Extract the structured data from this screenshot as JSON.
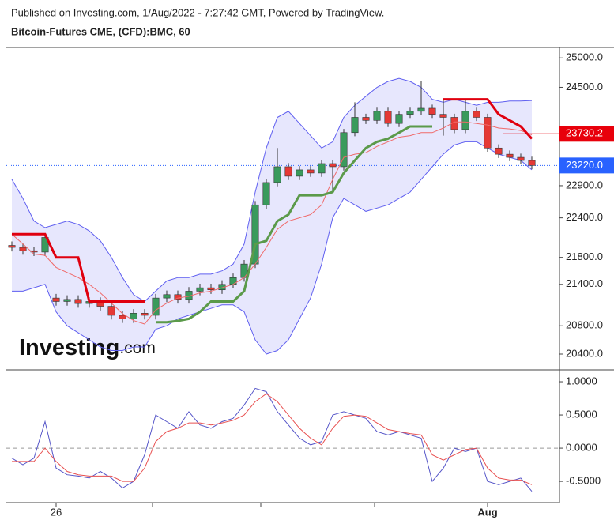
{
  "source": "Published on Investing.com, 1/Aug/2022 - 7:27:42 GMT, Powered by TradingView.",
  "watermark": {
    "brand": "Investing",
    "suffix": ".com"
  },
  "chart_data": [
    {
      "type": "candlestick",
      "title": "Bitcoin-Futures CME, (CFD):BMC, 60",
      "log_scale": true,
      "categories": [
        null,
        null,
        null,
        null,
        "26",
        null,
        null,
        null,
        null,
        null,
        null,
        null,
        null,
        null,
        null,
        null,
        null,
        null,
        null,
        null,
        null,
        null,
        null,
        null,
        null,
        null,
        null,
        null,
        null,
        null,
        null,
        null,
        null,
        null,
        null,
        null,
        null,
        null,
        null,
        null,
        null,
        null,
        null,
        "Aug",
        null,
        null,
        null,
        null
      ],
      "open": [
        21980,
        21950,
        21900,
        21880,
        21200,
        21150,
        21180,
        21120,
        21150,
        21080,
        20950,
        20900,
        20980,
        20950,
        21200,
        21250,
        21180,
        21300,
        21350,
        21320,
        21400,
        21500,
        21700,
        22600,
        22950,
        23200,
        23050,
        23150,
        23100,
        23250,
        23200,
        23750,
        24000,
        23950,
        24100,
        23900,
        24050,
        24100,
        24150,
        24050,
        24000,
        23800,
        24100,
        24000,
        23500,
        23400,
        23350,
        23300
      ],
      "high": [
        22040,
        22010,
        21960,
        22160,
        21260,
        21240,
        21240,
        21210,
        21210,
        21140,
        21010,
        21040,
        21040,
        21260,
        21310,
        21310,
        21360,
        21410,
        21410,
        21460,
        21560,
        21760,
        22660,
        23010,
        23500,
        23260,
        23210,
        23210,
        23310,
        23310,
        23810,
        24250,
        24060,
        24160,
        24160,
        24110,
        24160,
        24600,
        24210,
        24300,
        24060,
        24300,
        24160,
        24060,
        23560,
        23460,
        23410,
        23360
      ],
      "low": [
        21890,
        21840,
        21820,
        21820,
        21090,
        21090,
        21060,
        21060,
        21020,
        20890,
        20840,
        20840,
        20890,
        20890,
        21140,
        21120,
        21120,
        21240,
        21260,
        21260,
        21340,
        21440,
        21640,
        22540,
        22890,
        22990,
        22990,
        23040,
        23040,
        22800,
        23140,
        23690,
        23890,
        23890,
        23840,
        23840,
        23990,
        24040,
        23990,
        23700,
        23740,
        23740,
        23940,
        23440,
        23340,
        23290,
        23240,
        23160
      ],
      "close": [
        21950,
        21900,
        21880,
        22100,
        21150,
        21180,
        21120,
        21150,
        21080,
        20950,
        20900,
        20980,
        20950,
        21200,
        21250,
        21180,
        21300,
        21350,
        21320,
        21400,
        21500,
        21700,
        22600,
        22950,
        23200,
        23050,
        23150,
        23100,
        23250,
        23200,
        23750,
        24000,
        23950,
        24100,
        23900,
        24050,
        24100,
        24150,
        24050,
        24000,
        23800,
        24100,
        24000,
        23500,
        23400,
        23350,
        23300,
        23220
      ],
      "up_color": "#3a9a5c",
      "down_color": "#e53935",
      "bands": {
        "color": "#5f5ff0",
        "upper": [
          23000,
          22700,
          22350,
          22250,
          22300,
          22350,
          22300,
          22200,
          22050,
          21800,
          21500,
          21250,
          21150,
          21300,
          21450,
          21500,
          21500,
          21550,
          21550,
          21600,
          21700,
          22000,
          22800,
          23500,
          24000,
          24100,
          23900,
          23700,
          23500,
          23600,
          24000,
          24200,
          24350,
          24500,
          24600,
          24650,
          24600,
          24500,
          24300,
          24250,
          24300,
          24250,
          24200,
          24250,
          24250,
          24270,
          24270,
          24280
        ],
        "lower": [
          21300,
          21300,
          21350,
          21400,
          21000,
          20800,
          20700,
          20600,
          20500,
          20450,
          20450,
          20500,
          20500,
          20750,
          20800,
          20900,
          20950,
          21000,
          21050,
          21100,
          21100,
          21000,
          20600,
          20400,
          20450,
          20600,
          20900,
          21200,
          21700,
          22400,
          22700,
          22600,
          22500,
          22550,
          22600,
          22700,
          22800,
          23000,
          23200,
          23400,
          23550,
          23600,
          23600,
          23500,
          23400,
          23350,
          23300,
          23150
        ]
      },
      "series": [
        {
          "color": "#f06a6a",
          "width": 1,
          "values": [
            22150,
            22000,
            21850,
            21830,
            21650,
            21575,
            21500,
            21400,
            21275,
            21125,
            20975,
            20875,
            20825,
            21025,
            21125,
            21200,
            21225,
            21275,
            21300,
            21350,
            21400,
            21500,
            21700,
            21950,
            22225,
            22350,
            22400,
            22450,
            22600,
            23000,
            23350,
            23400,
            23425,
            23525,
            23600,
            23675,
            23700,
            23750,
            23750,
            23825,
            23925,
            23925,
            23900,
            23875,
            23825,
            23810,
            23785,
            23715
          ]
        },
        {
          "color": "#e0000f",
          "width": 3,
          "values": [
            22150,
            22150,
            22150,
            22150,
            21800,
            21800,
            21800,
            21150,
            21150,
            21150,
            21150,
            21150,
            21150,
            null,
            null,
            null,
            null,
            null,
            null,
            null,
            null,
            null,
            null,
            null,
            null,
            null,
            null,
            null,
            null,
            null,
            null,
            null,
            null,
            null,
            null,
            null,
            null,
            null,
            null,
            24300,
            24300,
            24300,
            24300,
            24300,
            24050,
            23950,
            23850,
            23650
          ]
        },
        {
          "color": "#5b9a4a",
          "width": 3,
          "values": [
            null,
            null,
            null,
            null,
            null,
            null,
            null,
            null,
            null,
            null,
            null,
            null,
            null,
            20850,
            20850,
            20870,
            20900,
            21000,
            21150,
            21150,
            21150,
            21300,
            22000,
            22050,
            22350,
            22450,
            22750,
            22750,
            22750,
            22800,
            23100,
            23300,
            23500,
            23600,
            23650,
            23750,
            23850,
            23850,
            23850,
            null,
            null,
            null,
            null,
            null,
            null,
            null,
            null,
            null
          ]
        }
      ],
      "price_lines": [
        {
          "value": 23730.2,
          "label": "23730.2",
          "color": "#e8000b",
          "style": "solid"
        },
        {
          "value": 23220,
          "label": "23220.0",
          "color": "#2962ff",
          "style": "dotted"
        }
      ],
      "ylim": [
        20180,
        25180
      ],
      "yticks": [
        {
          "value": 25000,
          "label": "25000.0"
        },
        {
          "value": 24500,
          "label": "24500.0"
        },
        {
          "value": 22900,
          "label": "22900.0"
        },
        {
          "value": 22400,
          "label": "22400.0"
        },
        {
          "value": 21800,
          "label": "21800.0"
        },
        {
          "value": 21400,
          "label": "21400.0"
        },
        {
          "value": 20800,
          "label": "20800.0"
        },
        {
          "value": 20400,
          "label": "20400.0"
        }
      ]
    },
    {
      "type": "line",
      "series": [
        {
          "color": "#5555c8",
          "values": [
            -0.15,
            -0.25,
            -0.15,
            0.4,
            -0.3,
            -0.4,
            -0.42,
            -0.45,
            -0.35,
            -0.45,
            -0.6,
            -0.5,
            -0.1,
            0.5,
            0.4,
            0.3,
            0.55,
            0.35,
            0.3,
            0.4,
            0.45,
            0.65,
            0.9,
            0.85,
            0.55,
            0.35,
            0.15,
            0.05,
            0.1,
            0.5,
            0.55,
            0.5,
            0.45,
            0.25,
            0.2,
            0.25,
            0.2,
            0.15,
            -0.5,
            -0.3,
            0.0,
            -0.05,
            0.0,
            -0.5,
            -0.55,
            -0.5,
            -0.45,
            -0.65
          ]
        },
        {
          "color": "#e85050",
          "values": [
            -0.2,
            -0.2,
            -0.2,
            0.0,
            -0.2,
            -0.35,
            -0.4,
            -0.42,
            -0.42,
            -0.42,
            -0.5,
            -0.5,
            -0.3,
            0.1,
            0.25,
            0.3,
            0.38,
            0.38,
            0.35,
            0.38,
            0.42,
            0.5,
            0.7,
            0.82,
            0.7,
            0.5,
            0.3,
            0.15,
            0.05,
            0.3,
            0.48,
            0.5,
            0.48,
            0.38,
            0.28,
            0.25,
            0.22,
            0.2,
            -0.1,
            -0.18,
            -0.1,
            -0.02,
            0.0,
            -0.3,
            -0.45,
            -0.48,
            -0.48,
            -0.55
          ]
        }
      ],
      "zero_line": 0,
      "ylim": [
        -0.82,
        1.155
      ],
      "yticks": [
        {
          "value": 1,
          "label": "1.0000"
        },
        {
          "value": 0.5,
          "label": "0.5000"
        },
        {
          "value": 0,
          "label": "0.0000"
        },
        {
          "value": -0.5,
          "label": "-0.5000"
        }
      ]
    }
  ]
}
